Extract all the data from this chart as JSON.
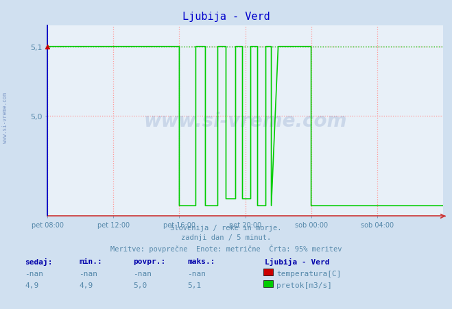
{
  "title": "Ljubija - Verd",
  "title_color": "#0000cc",
  "background_color": "#d0e0f0",
  "plot_bg_color": "#e8f0f8",
  "grid_color": "#ff9999",
  "ylim": [
    4.855,
    5.13
  ],
  "yticks": [
    5.0,
    5.1
  ],
  "ytick_labels": [
    "5,0",
    "5,1"
  ],
  "xlim": [
    0,
    288
  ],
  "xtick_positions": [
    0,
    48,
    96,
    144,
    192,
    240
  ],
  "xtick_labels": [
    "pet 08:00",
    "pet 12:00",
    "pet 16:00",
    "pet 20:00",
    "sob 00:00",
    "sob 04:00"
  ],
  "max_line_y": 5.1,
  "max_line_color": "#00cc00",
  "blue_vline_color": "#0000cc",
  "red_marker_color": "#cc0000",
  "subtitle_lines": [
    "Slovenija / reke in morje.",
    "zadnji dan / 5 minut.",
    "Meritve: povprečne  Enote: metrične  Črta: 95% meritev"
  ],
  "subtitle_color": "#5588aa",
  "legend_title": "Ljubija - Verd",
  "legend_color": "#0000aa",
  "watermark_text": "www.si-vreme.com",
  "watermark_color": "#4466aa",
  "watermark_alpha": 0.18,
  "side_watermark_color": "#4466aa",
  "table_headers": [
    "sedaj:",
    "min.:",
    "povpr.:",
    "maks.:"
  ],
  "table_row1": [
    "-nan",
    "-nan",
    "-nan",
    "-nan"
  ],
  "table_row2": [
    "4,9",
    "4,9",
    "5,0",
    "5,1"
  ],
  "legend_items": [
    {
      "label": "temperatura[C]",
      "color": "#cc0000"
    },
    {
      "label": "pretok[m3/s]",
      "color": "#00cc00"
    }
  ],
  "table_color": "#0000aa",
  "green_line_x": [
    0,
    0,
    96,
    96,
    108,
    108,
    115,
    115,
    124,
    124,
    130,
    130,
    137,
    137,
    142,
    142,
    148,
    148,
    153,
    153,
    159,
    159,
    163,
    163,
    168,
    192,
    192,
    288
  ],
  "green_line_y": [
    4.855,
    5.1,
    5.1,
    4.87,
    4.87,
    5.1,
    5.1,
    4.87,
    4.87,
    5.1,
    5.1,
    4.88,
    4.88,
    5.1,
    5.1,
    4.88,
    4.88,
    5.1,
    5.1,
    4.87,
    4.87,
    5.1,
    5.1,
    4.87,
    5.1,
    5.1,
    4.87,
    4.87
  ]
}
